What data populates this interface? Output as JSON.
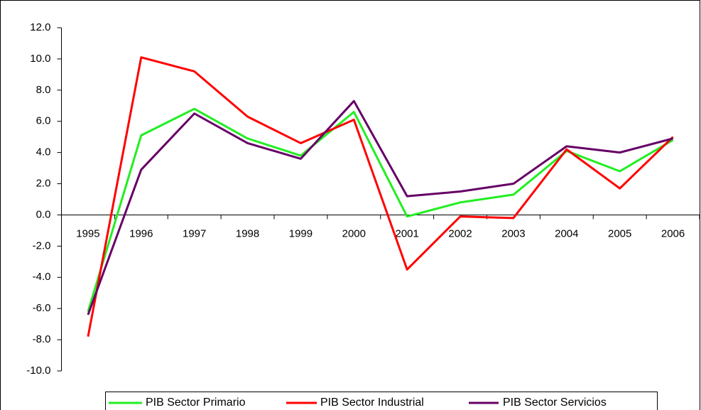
{
  "chart_data": {
    "type": "line",
    "categories": [
      "1995",
      "1996",
      "1997",
      "1998",
      "1999",
      "2000",
      "2001",
      "2002",
      "2003",
      "2004",
      "2005",
      "2006"
    ],
    "series": [
      {
        "name": "PIB Sector Primario",
        "color": "#22ee22",
        "values": [
          -6.2,
          5.1,
          6.8,
          4.9,
          3.8,
          6.6,
          -0.1,
          0.8,
          1.3,
          4.1,
          2.8,
          4.8
        ]
      },
      {
        "name": "PIB Sector Industrial",
        "color": "#ff0000",
        "values": [
          -7.8,
          10.1,
          9.2,
          6.3,
          4.6,
          6.1,
          -3.5,
          -0.1,
          -0.2,
          4.2,
          1.7,
          5.0
        ]
      },
      {
        "name": "PIB Sector Servicios",
        "color": "#660066",
        "values": [
          -6.4,
          2.9,
          6.5,
          4.6,
          3.6,
          7.3,
          1.2,
          1.5,
          2.0,
          4.4,
          4.0,
          4.9
        ]
      }
    ],
    "ylim": [
      -10,
      12
    ],
    "yticks": [
      {
        "value": -10,
        "label": "-10.0"
      },
      {
        "value": -8,
        "label": "-8.0"
      },
      {
        "value": -6,
        "label": "-6.0"
      },
      {
        "value": -4,
        "label": "-4.0"
      },
      {
        "value": -2,
        "label": "-2.0"
      },
      {
        "value": 0,
        "label": "0.0"
      },
      {
        "value": 2,
        "label": "2.0"
      },
      {
        "value": 4,
        "label": "4.0"
      },
      {
        "value": 6,
        "label": "6.0"
      },
      {
        "value": 8,
        "label": "8.0"
      },
      {
        "value": 10,
        "label": "10.0"
      },
      {
        "value": 12,
        "label": "12.0"
      }
    ],
    "grid": false,
    "legend": "bottom"
  }
}
